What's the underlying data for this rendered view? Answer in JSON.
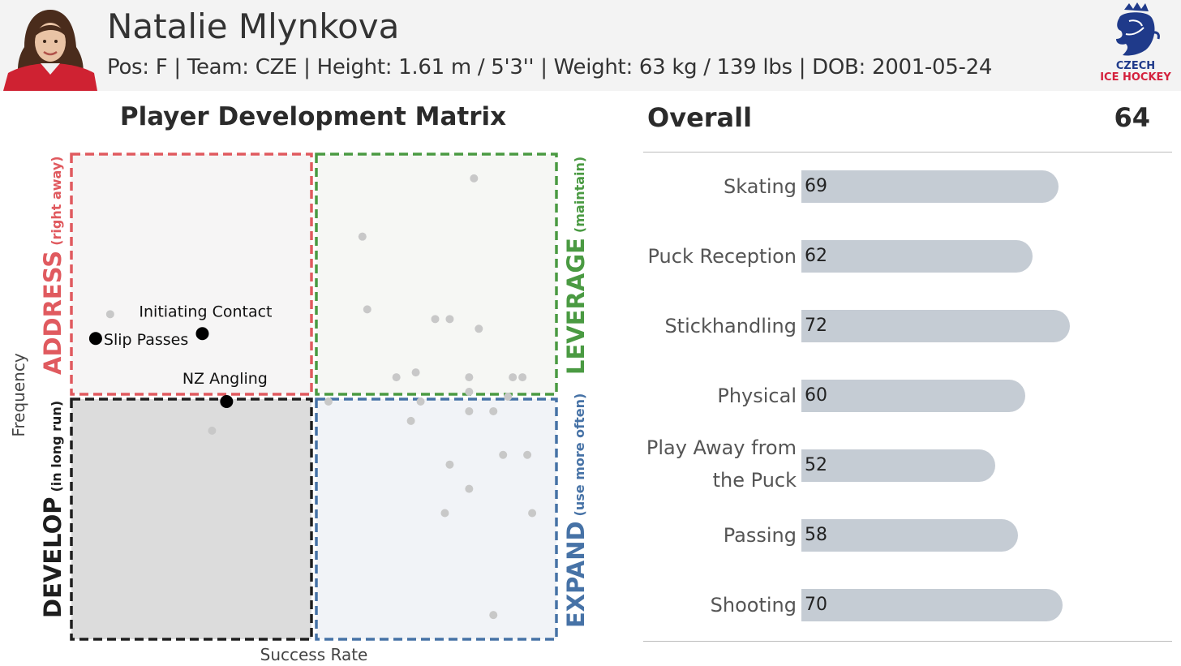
{
  "player": {
    "name": "Natalie Mlynkova",
    "info": "Pos: F | Team: CZE | Height: 1.61 m / 5'3'' | Weight: 63 kg / 139 lbs | DOB: 2001-05-24"
  },
  "logo": {
    "line1": "CZECH",
    "line2": "ICE HOCKEY",
    "colors": {
      "blue": "#1f3a8a",
      "red": "#d4213d"
    }
  },
  "matrix": {
    "title": "Player Development Matrix",
    "quadrants": {
      "address": {
        "title": "ADDRESS",
        "note": "(right away)",
        "color": "#e05a5f"
      },
      "leverage": {
        "title": "LEVERAGE",
        "note": "(maintain)",
        "color": "#4a9a42"
      },
      "develop": {
        "title": "DEVELOP",
        "note": "(in long run)",
        "color": "#1e1e1e"
      },
      "expand": {
        "title": "EXPAND",
        "note": "(use more often)",
        "color": "#4672a6"
      }
    }
  },
  "chart_data": [
    {
      "type": "scatter",
      "xlabel": "Success Rate",
      "ylabel": "Frequency",
      "xlim": [
        0,
        1
      ],
      "ylim": [
        0,
        1
      ],
      "quadrant_split": {
        "x": 0.5,
        "y": 0.5
      },
      "highlighted": [
        {
          "label": "Slip Passes",
          "x": 0.05,
          "y": 0.62
        },
        {
          "label": "Initiating Contact",
          "x": 0.27,
          "y": 0.63
        },
        {
          "label": "NZ Angling",
          "x": 0.32,
          "y": 0.49
        }
      ],
      "other_points": [
        [
          0.08,
          0.67
        ],
        [
          0.29,
          0.43
        ],
        [
          0.83,
          0.95
        ],
        [
          0.6,
          0.83
        ],
        [
          0.61,
          0.68
        ],
        [
          0.75,
          0.66
        ],
        [
          0.78,
          0.66
        ],
        [
          0.84,
          0.64
        ],
        [
          0.67,
          0.54
        ],
        [
          0.71,
          0.55
        ],
        [
          0.82,
          0.54
        ],
        [
          0.82,
          0.51
        ],
        [
          0.9,
          0.5
        ],
        [
          0.91,
          0.54
        ],
        [
          0.93,
          0.54
        ],
        [
          0.53,
          0.49
        ],
        [
          0.72,
          0.49
        ],
        [
          0.7,
          0.45
        ],
        [
          0.82,
          0.47
        ],
        [
          0.87,
          0.47
        ],
        [
          0.78,
          0.36
        ],
        [
          0.89,
          0.38
        ],
        [
          0.94,
          0.38
        ],
        [
          0.82,
          0.31
        ],
        [
          0.77,
          0.26
        ],
        [
          0.95,
          0.26
        ],
        [
          0.87,
          0.05
        ]
      ],
      "colors": {
        "highlighted": "#000000",
        "other": "#c8c8c8"
      }
    },
    {
      "type": "bar",
      "orientation": "horizontal",
      "title": "Overall",
      "overall": "64",
      "categories": [
        "Skating",
        "Puck Reception",
        "Stickhandling",
        "Physical",
        "Play Away from the Puck",
        "Passing",
        "Shooting"
      ],
      "labels_display": [
        [
          "Skating"
        ],
        [
          "Puck Reception"
        ],
        [
          "Stickhandling"
        ],
        [
          "Physical"
        ],
        [
          "Play Away from",
          "the Puck"
        ],
        [
          "Passing"
        ],
        [
          "Shooting"
        ]
      ],
      "values": [
        69,
        62,
        72,
        60,
        52,
        58,
        70
      ],
      "xlim": [
        0,
        100
      ],
      "bar_color": "#c5ccd4"
    }
  ]
}
